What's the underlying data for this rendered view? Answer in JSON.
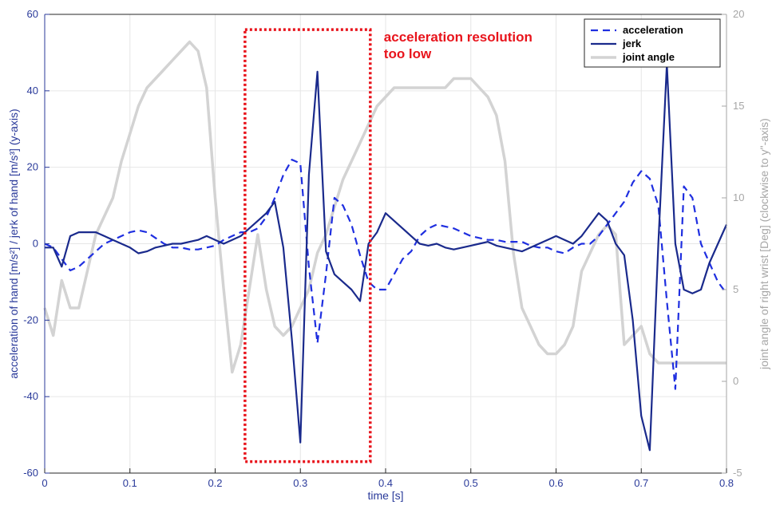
{
  "chart_data": {
    "type": "line",
    "xlabel": "time [s]",
    "ylabel": "acceleration of hand [m/s²] / jerk of hand [m/s³] (y-axis)",
    "y2label": "joint angle of right wrist [Deg] (clockwise to y\"-axis)",
    "xlim": [
      0,
      0.8
    ],
    "ylim": [
      -60,
      60
    ],
    "y2lim": [
      -5,
      20
    ],
    "xticks": [
      "0",
      "0.1",
      "0.2",
      "0.3",
      "0.4",
      "0.5",
      "0.6",
      "0.7",
      "0.8"
    ],
    "yticks": [
      "-60",
      "-40",
      "-20",
      "0",
      "20",
      "40",
      "60"
    ],
    "y2ticks": [
      "-5",
      "0",
      "5",
      "10",
      "15",
      "20"
    ],
    "legend_position": "top-right",
    "annotation": {
      "lines": [
        "acceleration resolution",
        "too low"
      ],
      "box_x": [
        0.235,
        0.382
      ],
      "box_y": [
        -57,
        56
      ]
    },
    "colors": {
      "acceleration": "#1f2fe0",
      "jerk": "#1a2a8c",
      "joint_angle": "#d3d3d3",
      "annotation": "#e8141c",
      "left_axis": "#2a3a9a",
      "right_axis": "#a6a6a6"
    },
    "series": [
      {
        "name": "acceleration",
        "axis": "left",
        "style": "dashed",
        "x": [
          0,
          0.01,
          0.02,
          0.03,
          0.04,
          0.05,
          0.06,
          0.07,
          0.08,
          0.09,
          0.1,
          0.11,
          0.12,
          0.13,
          0.14,
          0.15,
          0.16,
          0.17,
          0.18,
          0.19,
          0.2,
          0.21,
          0.22,
          0.23,
          0.24,
          0.25,
          0.26,
          0.27,
          0.28,
          0.29,
          0.3,
          0.31,
          0.32,
          0.33,
          0.34,
          0.35,
          0.36,
          0.37,
          0.38,
          0.39,
          0.4,
          0.41,
          0.42,
          0.43,
          0.44,
          0.45,
          0.46,
          0.47,
          0.48,
          0.49,
          0.5,
          0.51,
          0.52,
          0.53,
          0.54,
          0.55,
          0.56,
          0.57,
          0.58,
          0.59,
          0.6,
          0.61,
          0.62,
          0.63,
          0.64,
          0.65,
          0.66,
          0.67,
          0.68,
          0.69,
          0.7,
          0.71,
          0.72,
          0.73,
          0.74,
          0.75,
          0.76,
          0.77,
          0.78,
          0.79,
          0.8
        ],
        "y": [
          0,
          -1,
          -4,
          -7,
          -6,
          -4,
          -2,
          0,
          1,
          2,
          3,
          3.5,
          3,
          1.5,
          0,
          -1,
          -1,
          -1.5,
          -1.5,
          -1,
          -0.5,
          1,
          2,
          3,
          3,
          4,
          7,
          12,
          18,
          22,
          21,
          -6,
          -26,
          -8,
          12,
          10,
          5,
          -3,
          -10,
          -12,
          -12,
          -8,
          -4,
          -2,
          2,
          4,
          5,
          4.5,
          4,
          3,
          2,
          1.5,
          1,
          1,
          0.5,
          0.5,
          0.5,
          -0.5,
          -1,
          -1,
          -2,
          -2.5,
          -1,
          0,
          0,
          2,
          5,
          8,
          11,
          16,
          19,
          17,
          10,
          -15,
          -38,
          15,
          12,
          0,
          -5,
          -10,
          -13
        ]
      },
      {
        "name": "jerk",
        "axis": "left",
        "style": "solid",
        "x": [
          0,
          0.01,
          0.02,
          0.03,
          0.04,
          0.05,
          0.06,
          0.07,
          0.08,
          0.09,
          0.1,
          0.11,
          0.12,
          0.13,
          0.14,
          0.15,
          0.16,
          0.17,
          0.18,
          0.19,
          0.2,
          0.21,
          0.22,
          0.23,
          0.24,
          0.25,
          0.26,
          0.27,
          0.28,
          0.29,
          0.3,
          0.31,
          0.32,
          0.33,
          0.34,
          0.35,
          0.36,
          0.37,
          0.38,
          0.39,
          0.4,
          0.41,
          0.42,
          0.43,
          0.44,
          0.45,
          0.46,
          0.47,
          0.48,
          0.49,
          0.5,
          0.51,
          0.52,
          0.53,
          0.54,
          0.55,
          0.56,
          0.57,
          0.58,
          0.59,
          0.6,
          0.61,
          0.62,
          0.63,
          0.64,
          0.65,
          0.66,
          0.67,
          0.68,
          0.69,
          0.7,
          0.71,
          0.72,
          0.73,
          0.74,
          0.75,
          0.76,
          0.77,
          0.78,
          0.79,
          0.8
        ],
        "y": [
          -1,
          -1,
          -6,
          2,
          3,
          3,
          3,
          2,
          1,
          0,
          -1,
          -2.5,
          -2,
          -1,
          -0.5,
          0,
          0,
          0.5,
          1,
          2,
          1,
          0,
          1,
          2,
          4,
          6,
          8,
          11,
          -1,
          -25,
          -52,
          18,
          45,
          -2,
          -8,
          -10,
          -12,
          -15,
          0,
          3,
          8,
          6,
          4,
          2,
          0,
          -0.5,
          0,
          -1,
          -1.5,
          -1,
          -0.5,
          0,
          0.5,
          -0.5,
          -1,
          -1.5,
          -2,
          -1,
          0,
          1,
          2,
          1,
          0,
          2,
          5,
          8,
          6,
          0,
          -3,
          -20,
          -45,
          -54,
          0,
          47,
          0,
          -12,
          -13,
          -12,
          -5,
          0,
          5
        ]
      },
      {
        "name": "joint angle",
        "axis": "right",
        "style": "solid",
        "x": [
          0,
          0.01,
          0.02,
          0.03,
          0.04,
          0.05,
          0.06,
          0.07,
          0.08,
          0.09,
          0.1,
          0.11,
          0.12,
          0.13,
          0.14,
          0.15,
          0.16,
          0.17,
          0.18,
          0.19,
          0.2,
          0.21,
          0.22,
          0.23,
          0.24,
          0.25,
          0.26,
          0.27,
          0.28,
          0.29,
          0.3,
          0.31,
          0.32,
          0.33,
          0.34,
          0.35,
          0.36,
          0.37,
          0.38,
          0.39,
          0.4,
          0.41,
          0.42,
          0.43,
          0.44,
          0.45,
          0.46,
          0.47,
          0.48,
          0.49,
          0.5,
          0.51,
          0.52,
          0.53,
          0.54,
          0.55,
          0.56,
          0.57,
          0.58,
          0.59,
          0.6,
          0.61,
          0.62,
          0.63,
          0.64,
          0.65,
          0.66,
          0.67,
          0.68,
          0.69,
          0.7,
          0.71,
          0.72,
          0.73,
          0.74,
          0.75,
          0.76,
          0.77,
          0.78,
          0.79,
          0.8
        ],
        "y": [
          4,
          2.5,
          5.5,
          4,
          4,
          6,
          8,
          9,
          10,
          12,
          13.5,
          15,
          16,
          16.5,
          17,
          17.5,
          18,
          18.5,
          18,
          16,
          10,
          5,
          0.5,
          2,
          5,
          8,
          5,
          3,
          2.5,
          3,
          4,
          5,
          7,
          8,
          9.5,
          11,
          12,
          13,
          14,
          15,
          15.5,
          16,
          16,
          16,
          16,
          16,
          16,
          16,
          16.5,
          16.5,
          16.5,
          16,
          15.5,
          14.5,
          12,
          7,
          4,
          3,
          2,
          1.5,
          1.5,
          2,
          3,
          6,
          7,
          8,
          8.5,
          8,
          2,
          2.5,
          3,
          1.5,
          1,
          1,
          1,
          1,
          1,
          1,
          1,
          1,
          1
        ]
      }
    ]
  }
}
